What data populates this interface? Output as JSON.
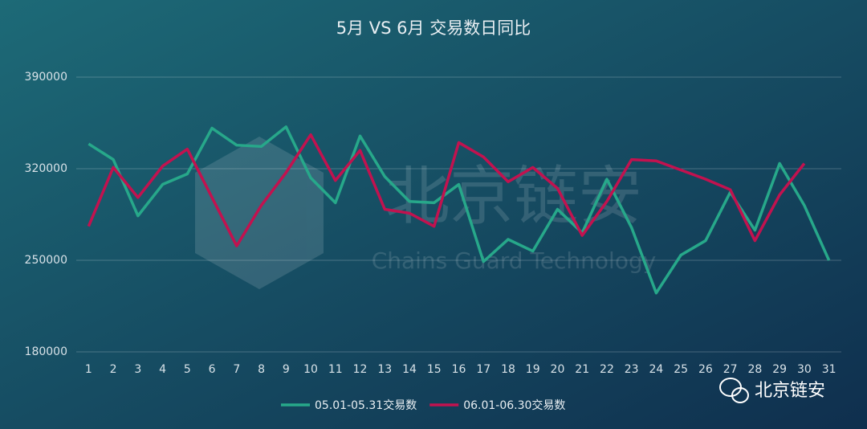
{
  "chart_data": {
    "type": "line",
    "title": "5月 VS 6月 交易数日同比",
    "categories": [
      "1",
      "2",
      "3",
      "4",
      "5",
      "6",
      "7",
      "8",
      "9",
      "10",
      "11",
      "12",
      "13",
      "14",
      "15",
      "16",
      "17",
      "18",
      "19",
      "20",
      "21",
      "22",
      "23",
      "24",
      "25",
      "26",
      "27",
      "28",
      "29",
      "30",
      "31"
    ],
    "series": [
      {
        "name": "05.01-05.31交易数",
        "color": "#27a88a",
        "values": [
          339000,
          327000,
          284000,
          308000,
          316000,
          351000,
          338000,
          337000,
          352000,
          313000,
          294000,
          345000,
          314000,
          295000,
          294000,
          308000,
          249000,
          266000,
          257000,
          289000,
          271000,
          312000,
          275000,
          225000,
          254000,
          265000,
          302000,
          273000,
          324000,
          292000,
          250000
        ]
      },
      {
        "name": "06.01-06.30交易数",
        "color": "#c2124f",
        "values": [
          276000,
          321000,
          298000,
          322000,
          335000,
          298000,
          261000,
          292000,
          317000,
          346000,
          311000,
          334000,
          289000,
          286000,
          276000,
          340000,
          329000,
          310000,
          321000,
          305000,
          269000,
          295000,
          327000,
          326000,
          319000,
          312000,
          304000,
          265000,
          300000,
          324000,
          null
        ]
      }
    ],
    "ylim": [
      180000,
      390000
    ],
    "yticks": [
      180000,
      250000,
      320000,
      390000
    ],
    "grid": true,
    "legend": "bottom"
  },
  "watermark": {
    "title": "北京链安",
    "subtitle": "Chains Guard Technology"
  },
  "logo": {
    "text": "北京链安"
  }
}
